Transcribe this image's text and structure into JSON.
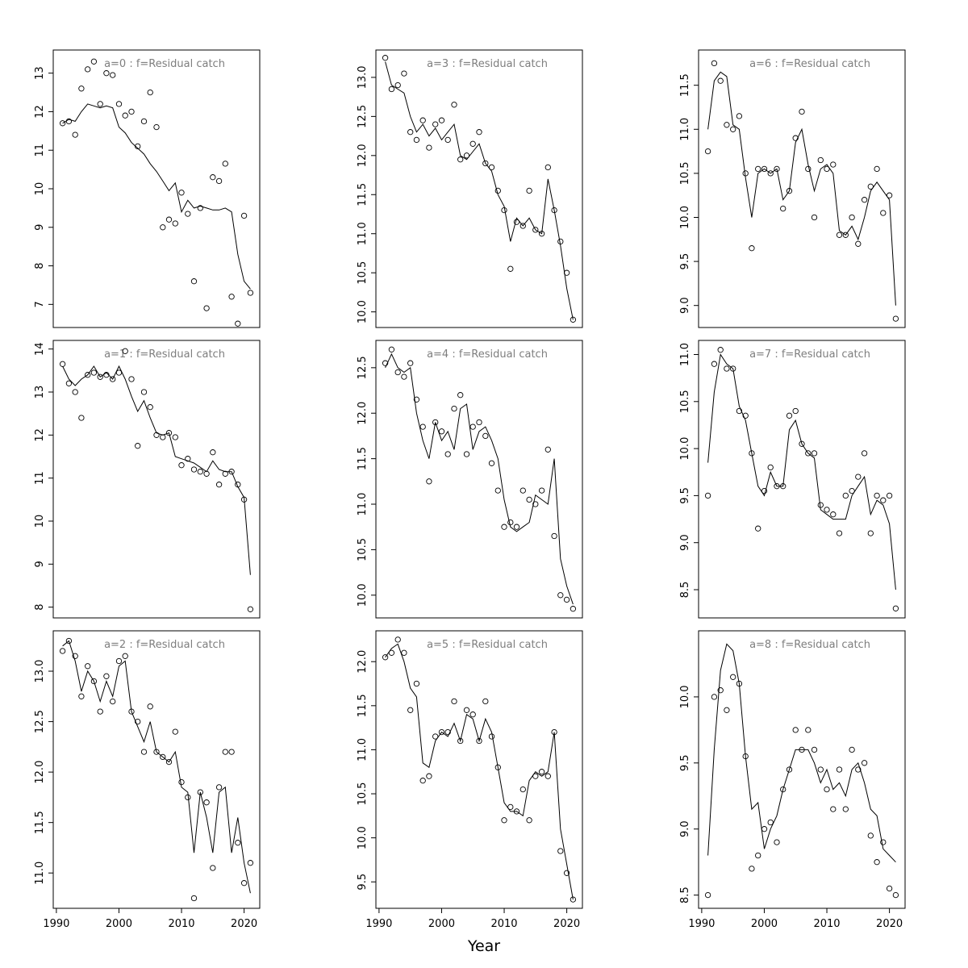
{
  "xlabel": "Year",
  "xlim": [
    1989.5,
    2022.5
  ],
  "xtick_values": [
    1990,
    2000,
    2010,
    2020
  ],
  "xtick_labels": [
    "1990",
    "2000",
    "2010",
    "2020"
  ],
  "years": [
    1991,
    1992,
    1993,
    1994,
    1995,
    1996,
    1997,
    1998,
    1999,
    2000,
    2001,
    2002,
    2003,
    2004,
    2005,
    2006,
    2007,
    2008,
    2009,
    2010,
    2011,
    2012,
    2013,
    2014,
    2015,
    2016,
    2017,
    2018,
    2019,
    2020,
    2021
  ],
  "chart_data": [
    {
      "id": "a0",
      "type": "scatter-line",
      "title": "a=0  :  f=Residual catch",
      "ylim": [
        6.4,
        13.6
      ],
      "yticks": [
        7,
        8,
        9,
        10,
        11,
        12,
        13
      ],
      "ytick_labels": [
        "7",
        "8",
        "9",
        "10",
        "11",
        "12",
        "13"
      ],
      "show_x_axis": false,
      "series": [
        {
          "name": "observed (points)",
          "values": [
            11.7,
            11.75,
            11.4,
            12.6,
            13.1,
            13.3,
            12.2,
            13.0,
            12.95,
            12.2,
            11.9,
            12.0,
            11.1,
            11.75,
            12.5,
            11.6,
            9.0,
            9.2,
            9.1,
            9.9,
            9.35,
            7.6,
            9.5,
            6.9,
            10.3,
            10.2,
            10.65,
            7.2,
            6.5,
            9.3,
            7.3
          ]
        },
        {
          "name": "fitted (line)",
          "values": [
            11.7,
            11.8,
            11.75,
            12.0,
            12.2,
            12.15,
            12.1,
            12.15,
            12.1,
            11.6,
            11.45,
            11.2,
            11.05,
            10.9,
            10.65,
            10.45,
            10.2,
            9.95,
            10.15,
            9.4,
            9.7,
            9.5,
            9.55,
            9.5,
            9.45,
            9.45,
            9.5,
            9.4,
            8.3,
            7.6,
            7.4
          ]
        }
      ]
    },
    {
      "id": "a3",
      "type": "scatter-line",
      "title": "a=3  :  f=Residual catch",
      "ylim": [
        9.8,
        13.35
      ],
      "yticks": [
        10.0,
        10.5,
        11.0,
        11.5,
        12.0,
        12.5,
        13.0
      ],
      "ytick_labels": [
        "10.0",
        "10.5",
        "11.0",
        "11.5",
        "12.0",
        "12.5",
        "13.0"
      ],
      "show_x_axis": false,
      "series": [
        {
          "name": "observed (points)",
          "values": [
            13.25,
            12.85,
            12.9,
            13.05,
            12.3,
            12.2,
            12.45,
            12.1,
            12.4,
            12.45,
            12.2,
            12.65,
            11.95,
            12.0,
            12.15,
            12.3,
            11.9,
            11.85,
            11.55,
            11.3,
            10.55,
            11.15,
            11.1,
            11.55,
            11.05,
            11.0,
            11.85,
            11.3,
            10.9,
            10.5,
            9.9
          ]
        },
        {
          "name": "fitted (line)",
          "values": [
            13.2,
            12.9,
            12.85,
            12.8,
            12.5,
            12.3,
            12.4,
            12.25,
            12.35,
            12.2,
            12.3,
            12.4,
            12.0,
            11.95,
            12.05,
            12.15,
            11.9,
            11.8,
            11.5,
            11.35,
            10.9,
            11.2,
            11.1,
            11.2,
            11.05,
            11.0,
            11.7,
            11.3,
            10.85,
            10.3,
            9.9
          ]
        }
      ]
    },
    {
      "id": "a6",
      "type": "scatter-line",
      "title": "a=6  :  f=Residual catch",
      "ylim": [
        8.75,
        11.9
      ],
      "yticks": [
        9.0,
        9.5,
        10.0,
        10.5,
        11.0,
        11.5
      ],
      "ytick_labels": [
        "9.0",
        "9.5",
        "10.0",
        "10.5",
        "11.0",
        "11.5"
      ],
      "show_x_axis": false,
      "series": [
        {
          "name": "observed (points)",
          "values": [
            10.75,
            11.75,
            11.55,
            11.05,
            11.0,
            11.15,
            10.5,
            9.65,
            10.55,
            10.55,
            10.5,
            10.55,
            10.1,
            10.3,
            10.9,
            11.2,
            10.55,
            10.0,
            10.65,
            10.55,
            10.6,
            9.8,
            9.8,
            10.0,
            9.7,
            10.2,
            10.35,
            10.55,
            10.05,
            10.25,
            8.85
          ]
        },
        {
          "name": "fitted (line)",
          "values": [
            11.0,
            11.55,
            11.65,
            11.6,
            11.05,
            11.0,
            10.45,
            10.0,
            10.5,
            10.55,
            10.5,
            10.55,
            10.2,
            10.3,
            10.85,
            11.0,
            10.6,
            10.3,
            10.55,
            10.6,
            10.5,
            9.85,
            9.8,
            9.9,
            9.75,
            10.0,
            10.3,
            10.4,
            10.3,
            10.2,
            9.0
          ]
        }
      ]
    },
    {
      "id": "a1",
      "type": "scatter-line",
      "title": "a=1  :  f=Residual catch",
      "ylim": [
        7.75,
        14.2
      ],
      "yticks": [
        8,
        9,
        10,
        11,
        12,
        13,
        14
      ],
      "ytick_labels": [
        "8",
        "9",
        "10",
        "11",
        "12",
        "13",
        "14"
      ],
      "show_x_axis": false,
      "series": [
        {
          "name": "observed (points)",
          "values": [
            13.65,
            13.2,
            13.0,
            12.4,
            13.4,
            13.45,
            13.35,
            13.4,
            13.3,
            13.45,
            13.95,
            13.3,
            11.75,
            13.0,
            12.65,
            12.0,
            11.95,
            12.05,
            11.95,
            11.3,
            11.45,
            11.2,
            11.15,
            11.1,
            11.6,
            10.85,
            11.1,
            11.15,
            10.85,
            10.5,
            7.95
          ]
        },
        {
          "name": "fitted (line)",
          "values": [
            13.6,
            13.3,
            13.15,
            13.3,
            13.4,
            13.6,
            13.35,
            13.45,
            13.3,
            13.6,
            13.3,
            12.9,
            12.55,
            12.8,
            12.4,
            12.05,
            12.0,
            12.05,
            11.5,
            11.45,
            11.4,
            11.35,
            11.25,
            11.15,
            11.4,
            11.2,
            11.15,
            11.15,
            10.8,
            10.55,
            8.75
          ]
        }
      ]
    },
    {
      "id": "a4",
      "type": "scatter-line",
      "title": "a=4  :  f=Residual catch",
      "ylim": [
        9.75,
        12.8
      ],
      "yticks": [
        10.0,
        10.5,
        11.0,
        11.5,
        12.0,
        12.5
      ],
      "ytick_labels": [
        "10.0",
        "10.5",
        "11.0",
        "11.5",
        "12.0",
        "12.5"
      ],
      "show_x_axis": false,
      "series": [
        {
          "name": "observed (points)",
          "values": [
            12.55,
            12.7,
            12.45,
            12.4,
            12.55,
            12.15,
            11.85,
            11.25,
            11.9,
            11.8,
            11.55,
            12.05,
            12.2,
            11.55,
            11.85,
            11.9,
            11.75,
            11.45,
            11.15,
            10.75,
            10.8,
            10.75,
            11.15,
            11.05,
            11.0,
            11.15,
            11.6,
            10.65,
            10.0,
            9.95,
            9.85
          ]
        },
        {
          "name": "fitted (line)",
          "values": [
            12.5,
            12.65,
            12.5,
            12.45,
            12.5,
            12.0,
            11.7,
            11.5,
            11.9,
            11.7,
            11.8,
            11.6,
            12.05,
            12.1,
            11.6,
            11.8,
            11.85,
            11.7,
            11.5,
            11.05,
            10.75,
            10.7,
            10.75,
            10.8,
            11.1,
            11.05,
            11.0,
            11.5,
            10.4,
            10.1,
            9.9
          ]
        }
      ]
    },
    {
      "id": "a7",
      "type": "scatter-line",
      "title": "a=7  :  f=Residual catch",
      "ylim": [
        8.2,
        11.15
      ],
      "yticks": [
        8.5,
        9.0,
        9.5,
        10.0,
        10.5,
        11.0
      ],
      "ytick_labels": [
        "8.5",
        "9.0",
        "9.5",
        "10.0",
        "10.5",
        "11.0"
      ],
      "show_x_axis": false,
      "series": [
        {
          "name": "observed (points)",
          "values": [
            9.5,
            10.9,
            11.05,
            10.85,
            10.85,
            10.4,
            10.35,
            9.95,
            9.15,
            9.55,
            9.8,
            9.6,
            9.6,
            10.35,
            10.4,
            10.05,
            9.95,
            9.95,
            9.4,
            9.35,
            9.3,
            9.1,
            9.5,
            9.55,
            9.7,
            9.95,
            9.1,
            9.5,
            9.45,
            9.5,
            8.3
          ]
        },
        {
          "name": "fitted (line)",
          "values": [
            9.85,
            10.6,
            11.0,
            10.9,
            10.85,
            10.45,
            10.3,
            9.95,
            9.6,
            9.5,
            9.75,
            9.6,
            9.6,
            10.2,
            10.3,
            10.05,
            9.95,
            9.9,
            9.35,
            9.3,
            9.25,
            9.25,
            9.25,
            9.5,
            9.6,
            9.7,
            9.3,
            9.45,
            9.4,
            9.2,
            8.5
          ]
        }
      ]
    },
    {
      "id": "a2",
      "type": "scatter-line",
      "title": "a=2  :  f=Residual catch",
      "ylim": [
        10.65,
        13.4
      ],
      "yticks": [
        11.0,
        11.5,
        12.0,
        12.5,
        13.0
      ],
      "ytick_labels": [
        "11.0",
        "11.5",
        "12.0",
        "12.5",
        "13.0"
      ],
      "show_x_axis": true,
      "series": [
        {
          "name": "observed (points)",
          "values": [
            13.2,
            13.3,
            13.15,
            12.75,
            13.05,
            12.9,
            12.6,
            12.95,
            12.7,
            13.1,
            13.15,
            12.6,
            12.5,
            12.2,
            12.65,
            12.2,
            12.15,
            12.1,
            12.4,
            11.9,
            11.75,
            10.75,
            11.8,
            11.7,
            11.05,
            11.85,
            12.2,
            12.2,
            11.3,
            10.9,
            11.1
          ]
        },
        {
          "name": "fitted (line)",
          "values": [
            13.25,
            13.3,
            13.1,
            12.8,
            13.0,
            12.9,
            12.7,
            12.9,
            12.75,
            13.05,
            13.1,
            12.6,
            12.45,
            12.3,
            12.5,
            12.2,
            12.15,
            12.1,
            12.2,
            11.85,
            11.8,
            11.2,
            11.8,
            11.55,
            11.2,
            11.8,
            11.85,
            11.2,
            11.55,
            11.1,
            10.8
          ]
        }
      ]
    },
    {
      "id": "a5",
      "type": "scatter-line",
      "title": "a=5  :  f=Residual catch",
      "ylim": [
        9.2,
        12.35
      ],
      "yticks": [
        9.5,
        10.0,
        10.5,
        11.0,
        11.5,
        12.0
      ],
      "ytick_labels": [
        "9.5",
        "10.0",
        "10.5",
        "11.0",
        "11.5",
        "12.0"
      ],
      "show_x_axis": true,
      "series": [
        {
          "name": "observed (points)",
          "values": [
            12.05,
            12.1,
            12.25,
            12.1,
            11.45,
            11.75,
            10.65,
            10.7,
            11.15,
            11.2,
            11.2,
            11.55,
            11.1,
            11.45,
            11.4,
            11.1,
            11.55,
            11.15,
            10.8,
            10.2,
            10.35,
            10.3,
            10.55,
            10.2,
            10.7,
            10.75,
            10.7,
            11.2,
            9.85,
            9.6,
            9.3
          ]
        },
        {
          "name": "fitted (line)",
          "values": [
            12.05,
            12.15,
            12.2,
            12.0,
            11.7,
            11.6,
            10.85,
            10.8,
            11.1,
            11.2,
            11.15,
            11.3,
            11.1,
            11.4,
            11.35,
            11.1,
            11.35,
            11.2,
            10.8,
            10.4,
            10.3,
            10.3,
            10.25,
            10.65,
            10.75,
            10.7,
            10.75,
            11.2,
            10.1,
            9.7,
            9.3
          ]
        }
      ]
    },
    {
      "id": "a8",
      "type": "scatter-line",
      "title": "a=8  :  f=Residual catch",
      "ylim": [
        8.4,
        10.5
      ],
      "yticks": [
        8.5,
        9.0,
        9.5,
        10.0
      ],
      "ytick_labels": [
        "8.5",
        "9.0",
        "9.5",
        "10.0"
      ],
      "show_x_axis": true,
      "series": [
        {
          "name": "observed (points)",
          "values": [
            8.5,
            10.0,
            10.05,
            9.9,
            10.15,
            10.1,
            9.55,
            8.7,
            8.8,
            9.0,
            9.05,
            8.9,
            9.3,
            9.45,
            9.75,
            9.6,
            9.75,
            9.6,
            9.45,
            9.3,
            9.15,
            9.45,
            9.15,
            9.6,
            9.45,
            9.5,
            8.95,
            8.75,
            8.9,
            8.55,
            8.5
          ]
        },
        {
          "name": "fitted (line)",
          "values": [
            8.8,
            9.6,
            10.2,
            10.4,
            10.35,
            10.1,
            9.55,
            9.15,
            9.2,
            8.85,
            9.0,
            9.1,
            9.3,
            9.45,
            9.6,
            9.6,
            9.6,
            9.5,
            9.35,
            9.45,
            9.3,
            9.35,
            9.25,
            9.45,
            9.5,
            9.35,
            9.15,
            9.1,
            8.85,
            8.8,
            8.75
          ]
        }
      ]
    }
  ]
}
